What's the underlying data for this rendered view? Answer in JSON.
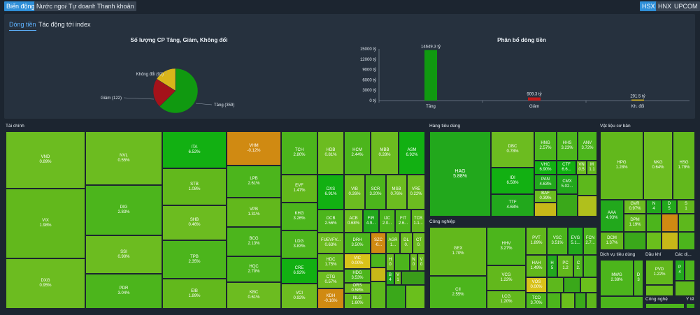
{
  "top_tabs": [
    "Biến động",
    "Nước ngoài",
    "Tự doanh",
    "Thanh khoản"
  ],
  "exchanges": [
    "HSX",
    "HNX",
    "UPCOM"
  ],
  "sub_tabs": [
    "Dòng tiền",
    "Tác động tới index"
  ],
  "pie": {
    "title": "Số lượng CP Tăng, Giảm, Không đổi",
    "slices": [
      {
        "label": "Tăng (359)",
        "value": 359,
        "color": "#109910"
      },
      {
        "label": "Giảm (122)",
        "value": 122,
        "color": "#a4121a"
      },
      {
        "label": "Không đổi (92)",
        "value": 92,
        "color": "#d9b51a"
      }
    ]
  },
  "chart_data": {
    "type": "bar",
    "title": "Phân bổ dòng tiền",
    "categories": [
      "Tăng",
      "Giảm",
      "Kh. đổi"
    ],
    "values": [
      14649.3,
      909.3,
      291.5
    ],
    "value_labels": [
      "14649.3 tỷ",
      "909.3 tỷ",
      "291.5 tỷ"
    ],
    "colors": [
      "#109910",
      "#c01a1a",
      "#d9b51a"
    ],
    "yticks": [
      "15000 tỷ",
      "12000 tỷ",
      "9000 tỷ",
      "6000 tỷ",
      "3000 tỷ",
      "0 tỷ"
    ],
    "ylim": [
      0,
      15000
    ]
  },
  "sectors": {
    "tai_chinh": "Tài chính",
    "hang_tieu_dung": "Hàng tiêu dùng",
    "cong_nghiep": "Công nghiệp",
    "vat_lieu": "Vật liệu cơ bản",
    "dich_vu": "Dịch vụ tiêu dùng",
    "dau_khi": "Dầu khí",
    "cac_di": "Các dị...",
    "cong_nghe": "Công nghệ",
    "y_te": "Y tế"
  },
  "tiles": [
    {
      "t": "VND",
      "v": "0.89%"
    },
    {
      "t": "VIX",
      "v": "1.98%"
    },
    {
      "t": "DXG",
      "v": "0.95%"
    },
    {
      "t": "NVL",
      "v": "0.55%"
    },
    {
      "t": "DIG",
      "v": "2.83%"
    },
    {
      "t": "SSI",
      "v": "0.90%"
    },
    {
      "t": "PDR",
      "v": "3.04%"
    },
    {
      "t": "ITA",
      "v": "6.52%"
    },
    {
      "t": "STB",
      "v": "1.08%"
    },
    {
      "t": "SHB",
      "v": "0.46%"
    },
    {
      "t": "TPB",
      "v": "2.35%"
    },
    {
      "t": "EIB",
      "v": "1.89%"
    },
    {
      "t": "VHM",
      "v": "-0.12%"
    },
    {
      "t": "LPB",
      "v": "2.61%"
    },
    {
      "t": "VPB",
      "v": "1.31%"
    },
    {
      "t": "BCG",
      "v": "2.13%"
    },
    {
      "t": "HQC",
      "v": "2.70%"
    },
    {
      "t": "KBC",
      "v": "0.61%"
    },
    {
      "t": "TCH",
      "v": "2.80%"
    },
    {
      "t": "EVF",
      "v": "1.47%"
    },
    {
      "t": "KHG",
      "v": "3.26%"
    },
    {
      "t": "LDG",
      "v": "3.83%"
    },
    {
      "t": "CRE",
      "v": "6.92%"
    },
    {
      "t": "VCI",
      "v": "0.92%"
    },
    {
      "t": "HDB",
      "v": "0.81%"
    },
    {
      "t": "HCM",
      "v": "2.44%"
    },
    {
      "t": "MBB",
      "v": "0.28%"
    },
    {
      "t": "ASM",
      "v": "6.92%"
    },
    {
      "t": "DXS",
      "v": "6.91%"
    },
    {
      "t": "VIB",
      "v": "0.26%"
    },
    {
      "t": "SCR",
      "v": "3.20%"
    },
    {
      "t": "MSB",
      "v": "0.76%"
    },
    {
      "t": "VRE",
      "v": "0.22%"
    },
    {
      "t": "OCB",
      "v": "2.56%"
    },
    {
      "t": "ACB",
      "v": "0.68%"
    },
    {
      "t": "FIR",
      "v": "4.9..."
    },
    {
      "t": "IJC",
      "v": "2.0..."
    },
    {
      "t": "FIT",
      "v": "2.6..."
    },
    {
      "t": "TCB",
      "v": "1.1..."
    },
    {
      "t": "FUEVFV...",
      "v": "0.63%"
    },
    {
      "t": "DRH",
      "v": "3.50%"
    },
    {
      "t": "SZC",
      "v": "-0..."
    },
    {
      "t": "AGR",
      "v": "1..."
    },
    {
      "t": "DL",
      "v": "0."
    },
    {
      "t": "CT",
      "v": "0."
    },
    {
      "t": "HDC",
      "v": "1.75%"
    },
    {
      "t": "VIC",
      "v": "0.00%"
    },
    {
      "t": "CTG",
      "v": "0.57%"
    },
    {
      "t": "HDG",
      "v": "3.53%"
    },
    {
      "t": "ORS",
      "v": "0.58%"
    },
    {
      "t": "KDH",
      "v": "-0.16%"
    },
    {
      "t": "NLG",
      "v": "1.60%"
    },
    {
      "t": "H",
      "v": "0"
    },
    {
      "t": "N",
      "v": "0"
    },
    {
      "t": "V",
      "v": "0"
    },
    {
      "t": "B",
      "v": "4"
    },
    {
      "t": "V",
      "v": "1"
    },
    {
      "t": "HAG",
      "v": "5.88%"
    },
    {
      "t": "DBC",
      "v": "0.78%"
    },
    {
      "t": "IDI",
      "v": "6.58%"
    },
    {
      "t": "TTF",
      "v": "4.68%"
    },
    {
      "t": "HNG",
      "v": "2.57%"
    },
    {
      "t": "HHS",
      "v": "3.23%"
    },
    {
      "t": "ANV",
      "v": "3.72%"
    },
    {
      "t": "VHC",
      "v": "6.90%"
    },
    {
      "t": "CTF",
      "v": "6.6..."
    },
    {
      "t": "VN",
      "v": "0.5"
    },
    {
      "t": "M",
      "v": "1.1"
    },
    {
      "t": "PAN",
      "v": "4.63%"
    },
    {
      "t": "CMX",
      "v": "5.02..."
    },
    {
      "t": "BAF",
      "v": "0.39%"
    },
    {
      "t": "GEX",
      "v": "1.70%"
    },
    {
      "t": "CII",
      "v": "2.55%"
    },
    {
      "t": "HHV",
      "v": "3.27%"
    },
    {
      "t": "VCG",
      "v": "1.22%"
    },
    {
      "t": "LCG",
      "v": "1.20%"
    },
    {
      "t": "PVT",
      "v": "1.89%"
    },
    {
      "t": "VSC",
      "v": "3.51%"
    },
    {
      "t": "EVG",
      "v": "5.1..."
    },
    {
      "t": "FCN",
      "v": "2.7..."
    },
    {
      "t": "HAH",
      "v": "1.49%"
    },
    {
      "t": "H",
      "v": "5"
    },
    {
      "t": "PC",
      "v": "1.2"
    },
    {
      "t": "C",
      "v": "2."
    },
    {
      "t": "VOS",
      "v": "0.00%"
    },
    {
      "t": "TCD",
      "v": "3.70%"
    },
    {
      "t": "HPG",
      "v": "1.28%"
    },
    {
      "t": "NKG",
      "v": "0.64%"
    },
    {
      "t": "HSG",
      "v": "1.79%"
    },
    {
      "t": "AAA",
      "v": "4.93%"
    },
    {
      "t": "GVR",
      "v": "0.97%"
    },
    {
      "t": "N",
      "v": "4"
    },
    {
      "t": "D",
      "v": "5"
    },
    {
      "t": "S",
      "v": "1"
    },
    {
      "t": "DPM",
      "v": "1.19%"
    },
    {
      "t": "DCM",
      "v": "1.37%"
    },
    {
      "t": "MWG",
      "v": "2.38%"
    },
    {
      "t": "D",
      "v": "3"
    },
    {
      "t": "PVD",
      "v": "1.22%"
    },
    {
      "t": "P",
      "v": "4"
    }
  ]
}
